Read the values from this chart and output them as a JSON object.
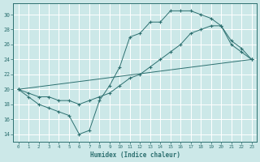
{
  "xlabel": "Humidex (Indice chaleur)",
  "xlim": [
    -0.5,
    23.5
  ],
  "ylim": [
    13.0,
    31.5
  ],
  "yticks": [
    14,
    16,
    18,
    20,
    22,
    24,
    26,
    28,
    30
  ],
  "xticks": [
    0,
    1,
    2,
    3,
    4,
    5,
    6,
    7,
    8,
    9,
    10,
    11,
    12,
    13,
    14,
    15,
    16,
    17,
    18,
    19,
    20,
    21,
    22,
    23
  ],
  "bg_color": "#cce8e8",
  "grid_color": "#ffffff",
  "line_color": "#2d7070",
  "curve1_x": [
    0,
    1,
    2,
    3,
    4,
    5,
    6,
    7,
    8,
    9,
    10,
    11,
    12,
    13,
    14,
    15,
    16,
    17,
    18,
    19,
    20,
    21,
    22,
    23
  ],
  "curve1_y": [
    20,
    19,
    18,
    17.5,
    17,
    16.5,
    14,
    14.5,
    18.5,
    20.5,
    23,
    27,
    27.5,
    29,
    29,
    30.5,
    30.5,
    30.5,
    30,
    29.5,
    28.5,
    26,
    25,
    24
  ],
  "curve2_x": [
    0,
    1,
    2,
    3,
    4,
    5,
    6,
    7,
    8,
    9,
    10,
    11,
    12,
    13,
    14,
    15,
    16,
    17,
    18,
    19,
    20,
    21,
    22,
    23
  ],
  "curve2_y": [
    20,
    19.5,
    19,
    19,
    18.5,
    18.5,
    18,
    18.5,
    19,
    19.5,
    20.5,
    21.5,
    22,
    23,
    24,
    25,
    26,
    27.5,
    28,
    28.5,
    28.5,
    26.5,
    25.5,
    24
  ],
  "line3_x": [
    0,
    23
  ],
  "line3_y": [
    20,
    24
  ]
}
